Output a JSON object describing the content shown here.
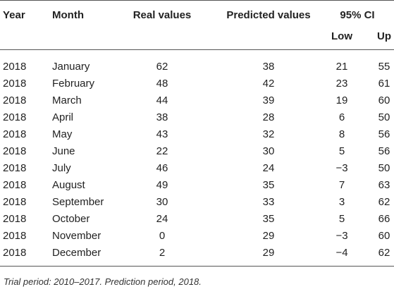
{
  "table": {
    "headers": {
      "year": "Year",
      "month": "Month",
      "real": "Real values",
      "predicted": "Predicted values",
      "ci": "95% CI",
      "low": "Low",
      "up": "Up"
    },
    "rows": [
      {
        "year": "2018",
        "month": "January",
        "real": "62",
        "predicted": "38",
        "low": "21",
        "up": "55"
      },
      {
        "year": "2018",
        "month": "February",
        "real": "48",
        "predicted": "42",
        "low": "23",
        "up": "61"
      },
      {
        "year": "2018",
        "month": "March",
        "real": "44",
        "predicted": "39",
        "low": "19",
        "up": "60"
      },
      {
        "year": "2018",
        "month": "April",
        "real": "38",
        "predicted": "28",
        "low": "6",
        "up": "50"
      },
      {
        "year": "2018",
        "month": "May",
        "real": "43",
        "predicted": "32",
        "low": "8",
        "up": "56"
      },
      {
        "year": "2018",
        "month": "June",
        "real": "22",
        "predicted": "30",
        "low": "5",
        "up": "56"
      },
      {
        "year": "2018",
        "month": "July",
        "real": "46",
        "predicted": "24",
        "low": "−3",
        "up": "50"
      },
      {
        "year": "2018",
        "month": "August",
        "real": "49",
        "predicted": "35",
        "low": "7",
        "up": "63"
      },
      {
        "year": "2018",
        "month": "September",
        "real": "30",
        "predicted": "33",
        "low": "3",
        "up": "62"
      },
      {
        "year": "2018",
        "month": "October",
        "real": "24",
        "predicted": "35",
        "low": "5",
        "up": "66"
      },
      {
        "year": "2018",
        "month": "November",
        "real": "0",
        "predicted": "29",
        "low": "−3",
        "up": "60"
      },
      {
        "year": "2018",
        "month": "December",
        "real": "2",
        "predicted": "29",
        "low": "−4",
        "up": "62"
      }
    ],
    "footnote": "Trial period: 2010–2017. Prediction period, 2018."
  }
}
